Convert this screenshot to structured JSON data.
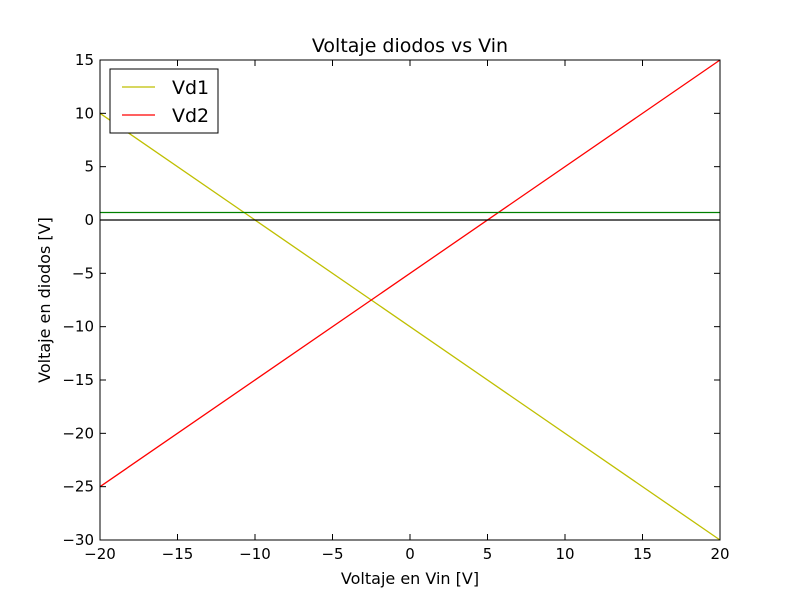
{
  "chart_data": {
    "type": "line",
    "title": "Voltaje diodos vs Vin",
    "xlabel": "Voltaje en Vin [V]",
    "ylabel": "Voltaje en diodos [V]",
    "xlim": [
      -20,
      20
    ],
    "ylim": [
      -30,
      15
    ],
    "xticks": [
      -20,
      -15,
      -10,
      -5,
      0,
      5,
      10,
      15,
      20
    ],
    "yticks": [
      15,
      10,
      5,
      0,
      -5,
      -10,
      -15,
      -20,
      -25,
      -30
    ],
    "grid": false,
    "legend_position": "top-left",
    "series": [
      {
        "name": "Vd1",
        "color": "#bfbf00",
        "x": [
          -20,
          20
        ],
        "y": [
          10,
          -30
        ]
      },
      {
        "name": "Vd2",
        "color": "#ff0000",
        "x": [
          -20,
          20
        ],
        "y": [
          -25,
          15
        ]
      },
      {
        "color": "#008000",
        "x": [
          -20,
          20
        ],
        "y": [
          0.7,
          0.7
        ]
      },
      {
        "color": "#000000",
        "x": [
          -20,
          20
        ],
        "y": [
          0,
          0
        ]
      }
    ]
  }
}
